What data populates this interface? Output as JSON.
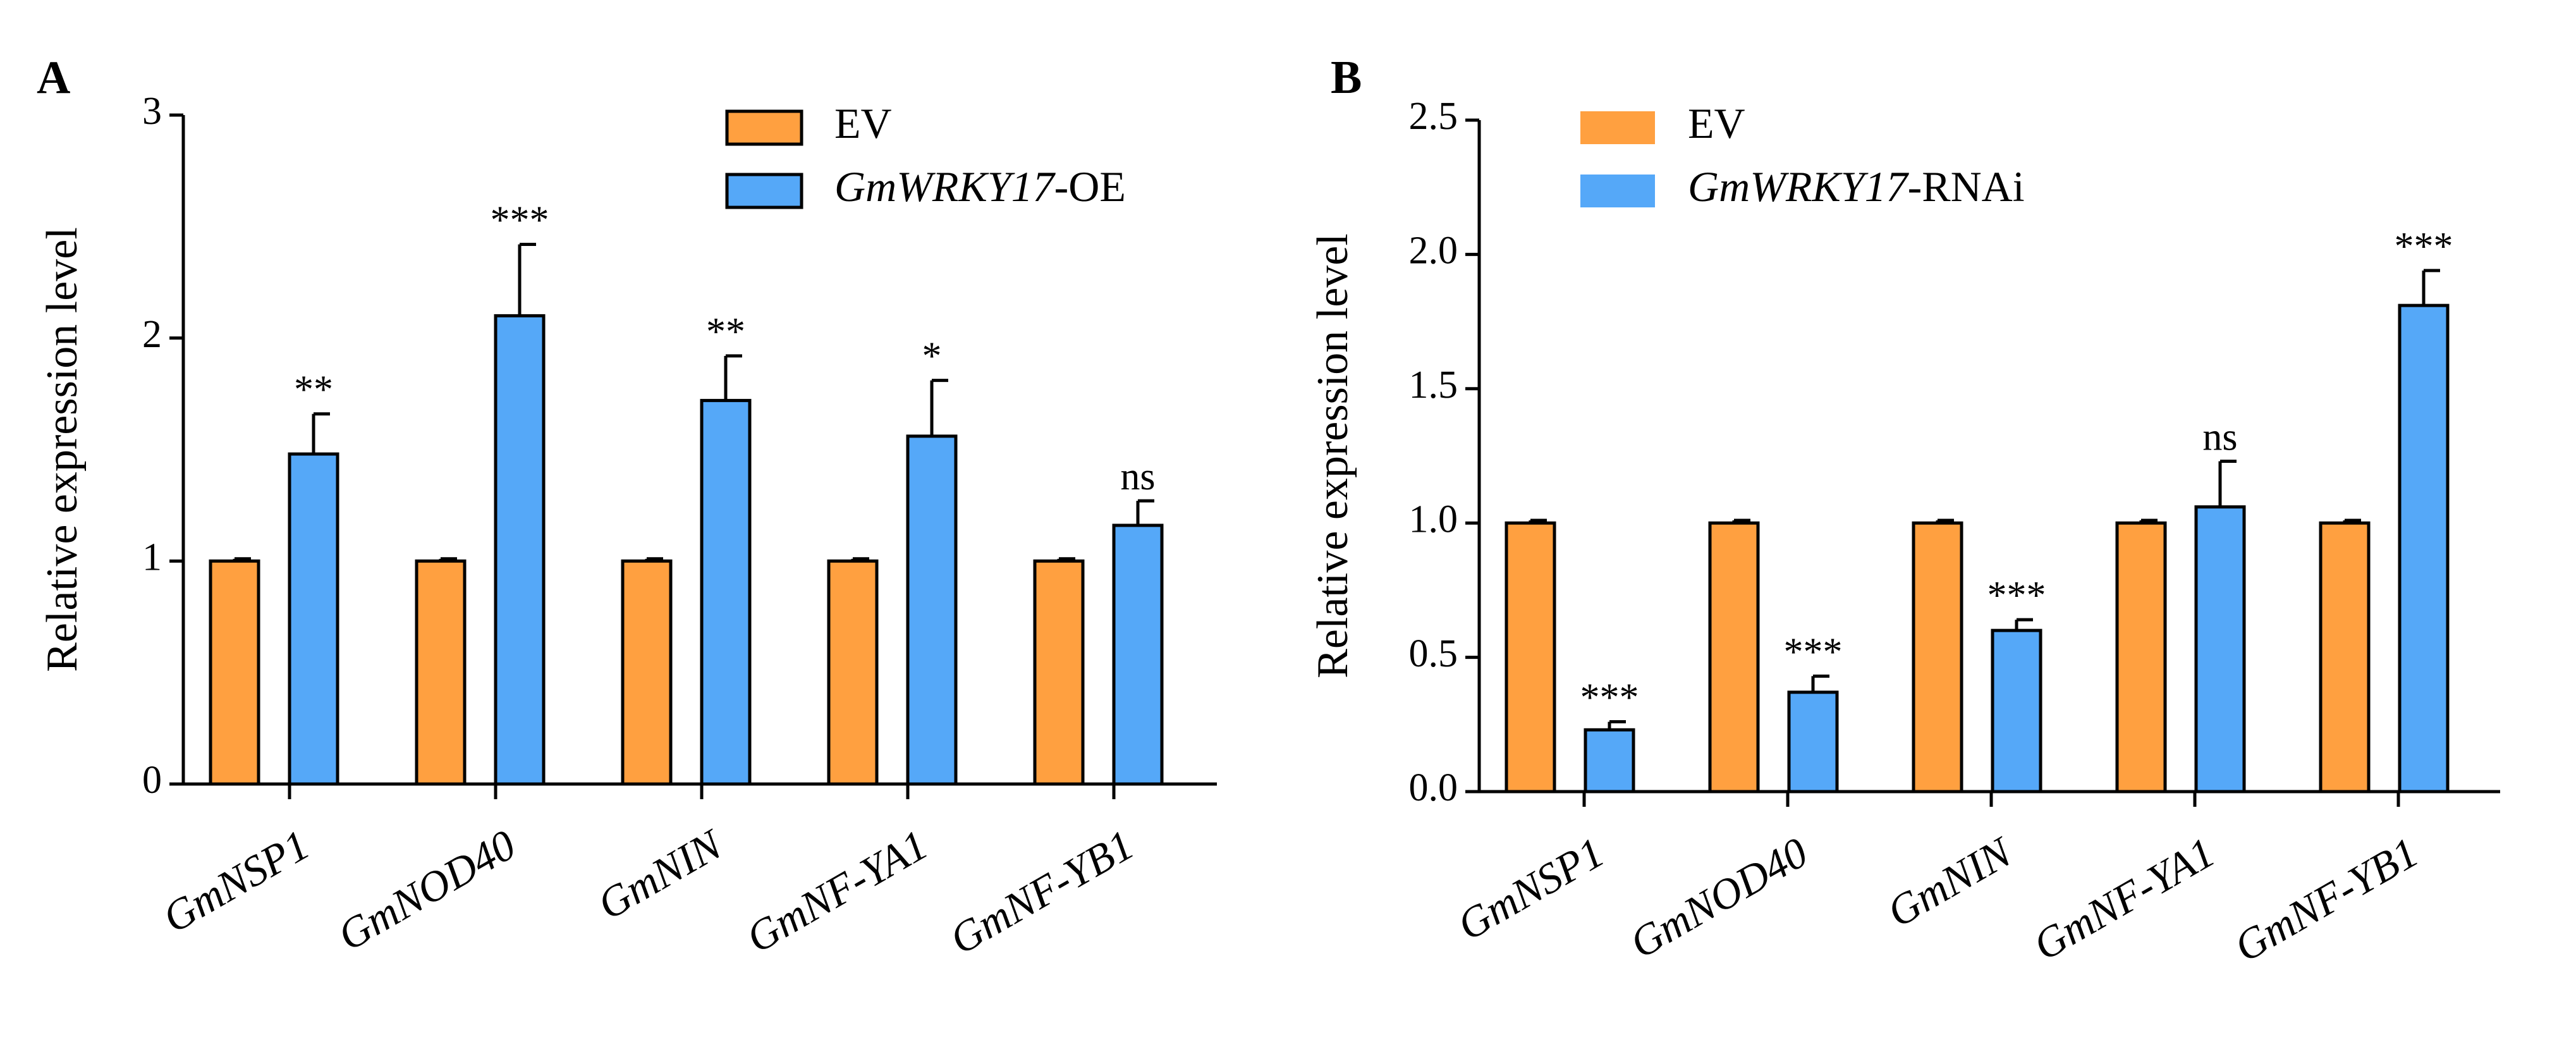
{
  "colors": {
    "ev": "#FFA040",
    "treatment": "#55A8F8"
  },
  "chart_data": [
    {
      "panel": "A",
      "type": "bar",
      "ylabel": "Relative expression level",
      "ylim": [
        0,
        3
      ],
      "yticks": [
        0,
        1,
        2,
        3
      ],
      "ytick_labels": [
        "0",
        "1",
        "2",
        "3"
      ],
      "categories": [
        "GmNSP1",
        "GmNOD40",
        "GmNIN",
        "GmNF-YA1",
        "GmNF-YB1"
      ],
      "legend": [
        {
          "italic": "",
          "plain": "EV"
        },
        {
          "italic": "GmWRKY17",
          "plain": "-OE"
        }
      ],
      "series": [
        {
          "name": "EV",
          "values": [
            1.0,
            1.0,
            1.0,
            1.0,
            1.0
          ],
          "errors": [
            0.01,
            0.01,
            0.01,
            0.01,
            0.01
          ]
        },
        {
          "name": "GmWRKY17-OE",
          "values": [
            1.48,
            2.1,
            1.72,
            1.56,
            1.16
          ],
          "errors": [
            0.18,
            0.32,
            0.2,
            0.25,
            0.11
          ]
        }
      ],
      "significance": [
        "**",
        "***",
        "**",
        "*",
        "ns"
      ]
    },
    {
      "panel": "B",
      "type": "bar",
      "ylabel": "Relative expression level",
      "ylim": [
        0,
        2.5
      ],
      "yticks": [
        0,
        0.5,
        1,
        1.5,
        2,
        2.5
      ],
      "ytick_labels": [
        "0.0",
        "0.5",
        "1.0",
        "1.5",
        "2.0",
        "2.5"
      ],
      "categories": [
        "GmNSP1",
        "GmNOD40",
        "GmNIN",
        "GmNF-YA1",
        "GmNF-YB1"
      ],
      "legend": [
        {
          "italic": "",
          "plain": "EV"
        },
        {
          "italic": "GmWRKY17",
          "plain": "-RNAi"
        }
      ],
      "series": [
        {
          "name": "EV",
          "values": [
            1.0,
            1.0,
            1.0,
            1.0,
            1.0
          ],
          "errors": [
            0.01,
            0.01,
            0.01,
            0.01,
            0.01
          ]
        },
        {
          "name": "GmWRKY17-RNAi",
          "values": [
            0.23,
            0.37,
            0.6,
            1.06,
            1.81
          ],
          "errors": [
            0.03,
            0.06,
            0.04,
            0.17,
            0.13
          ]
        }
      ],
      "significance": [
        "***",
        "***",
        "***",
        "ns",
        "***"
      ]
    }
  ]
}
